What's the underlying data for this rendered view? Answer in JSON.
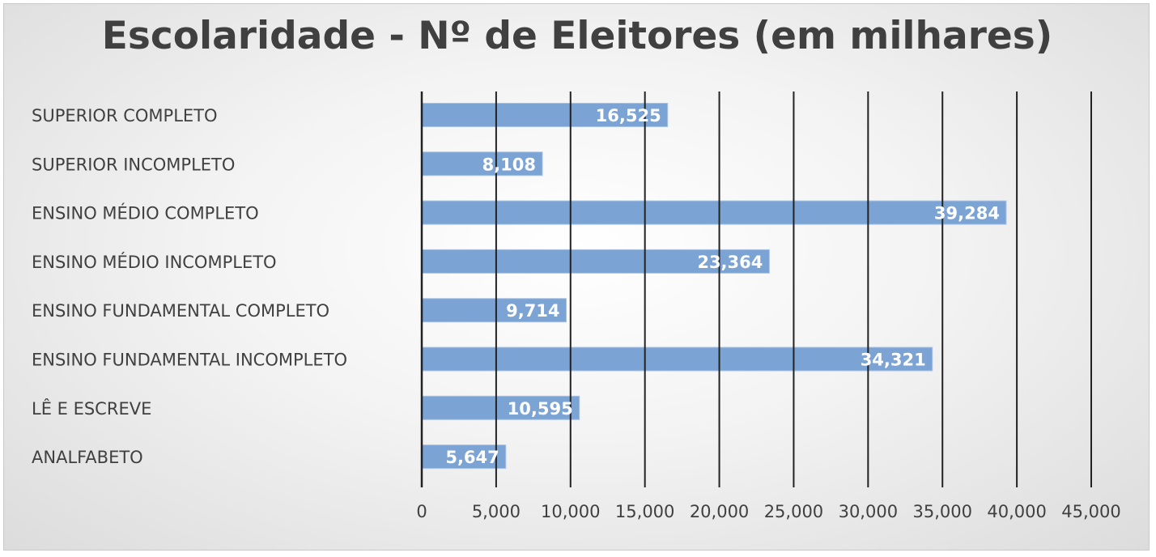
{
  "chart_data": {
    "type": "bar",
    "orientation": "horizontal",
    "title": "Escolaridade - Nº de Eleitores (em milhares)",
    "categories": [
      "SUPERIOR COMPLETO",
      "SUPERIOR INCOMPLETO",
      "ENSINO MÉDIO COMPLETO",
      "ENSINO MÉDIO INCOMPLETO",
      "ENSINO FUNDAMENTAL COMPLETO",
      "ENSINO FUNDAMENTAL INCOMPLETO",
      "LÊ E ESCREVE",
      "ANALFABETO"
    ],
    "values": [
      16525,
      8108,
      39284,
      23364,
      9714,
      34321,
      10595,
      5647
    ],
    "value_labels": [
      "16,525",
      "8,108",
      "39,284",
      "23,364",
      "9,714",
      "34,321",
      "10,595",
      "5,647"
    ],
    "xticks": [
      0,
      5000,
      10000,
      15000,
      20000,
      25000,
      30000,
      35000,
      40000,
      45000
    ],
    "xtick_labels": [
      "0",
      "5,000",
      "10,000",
      "15,000",
      "20,000",
      "25,000",
      "30,000",
      "35,000",
      "40,000",
      "45,000"
    ],
    "xlim": [
      0,
      45000
    ],
    "grid": true,
    "legend": "none",
    "bar_color": "#7ba3d4",
    "grid_color": "#222222",
    "text_color": "#404040"
  }
}
